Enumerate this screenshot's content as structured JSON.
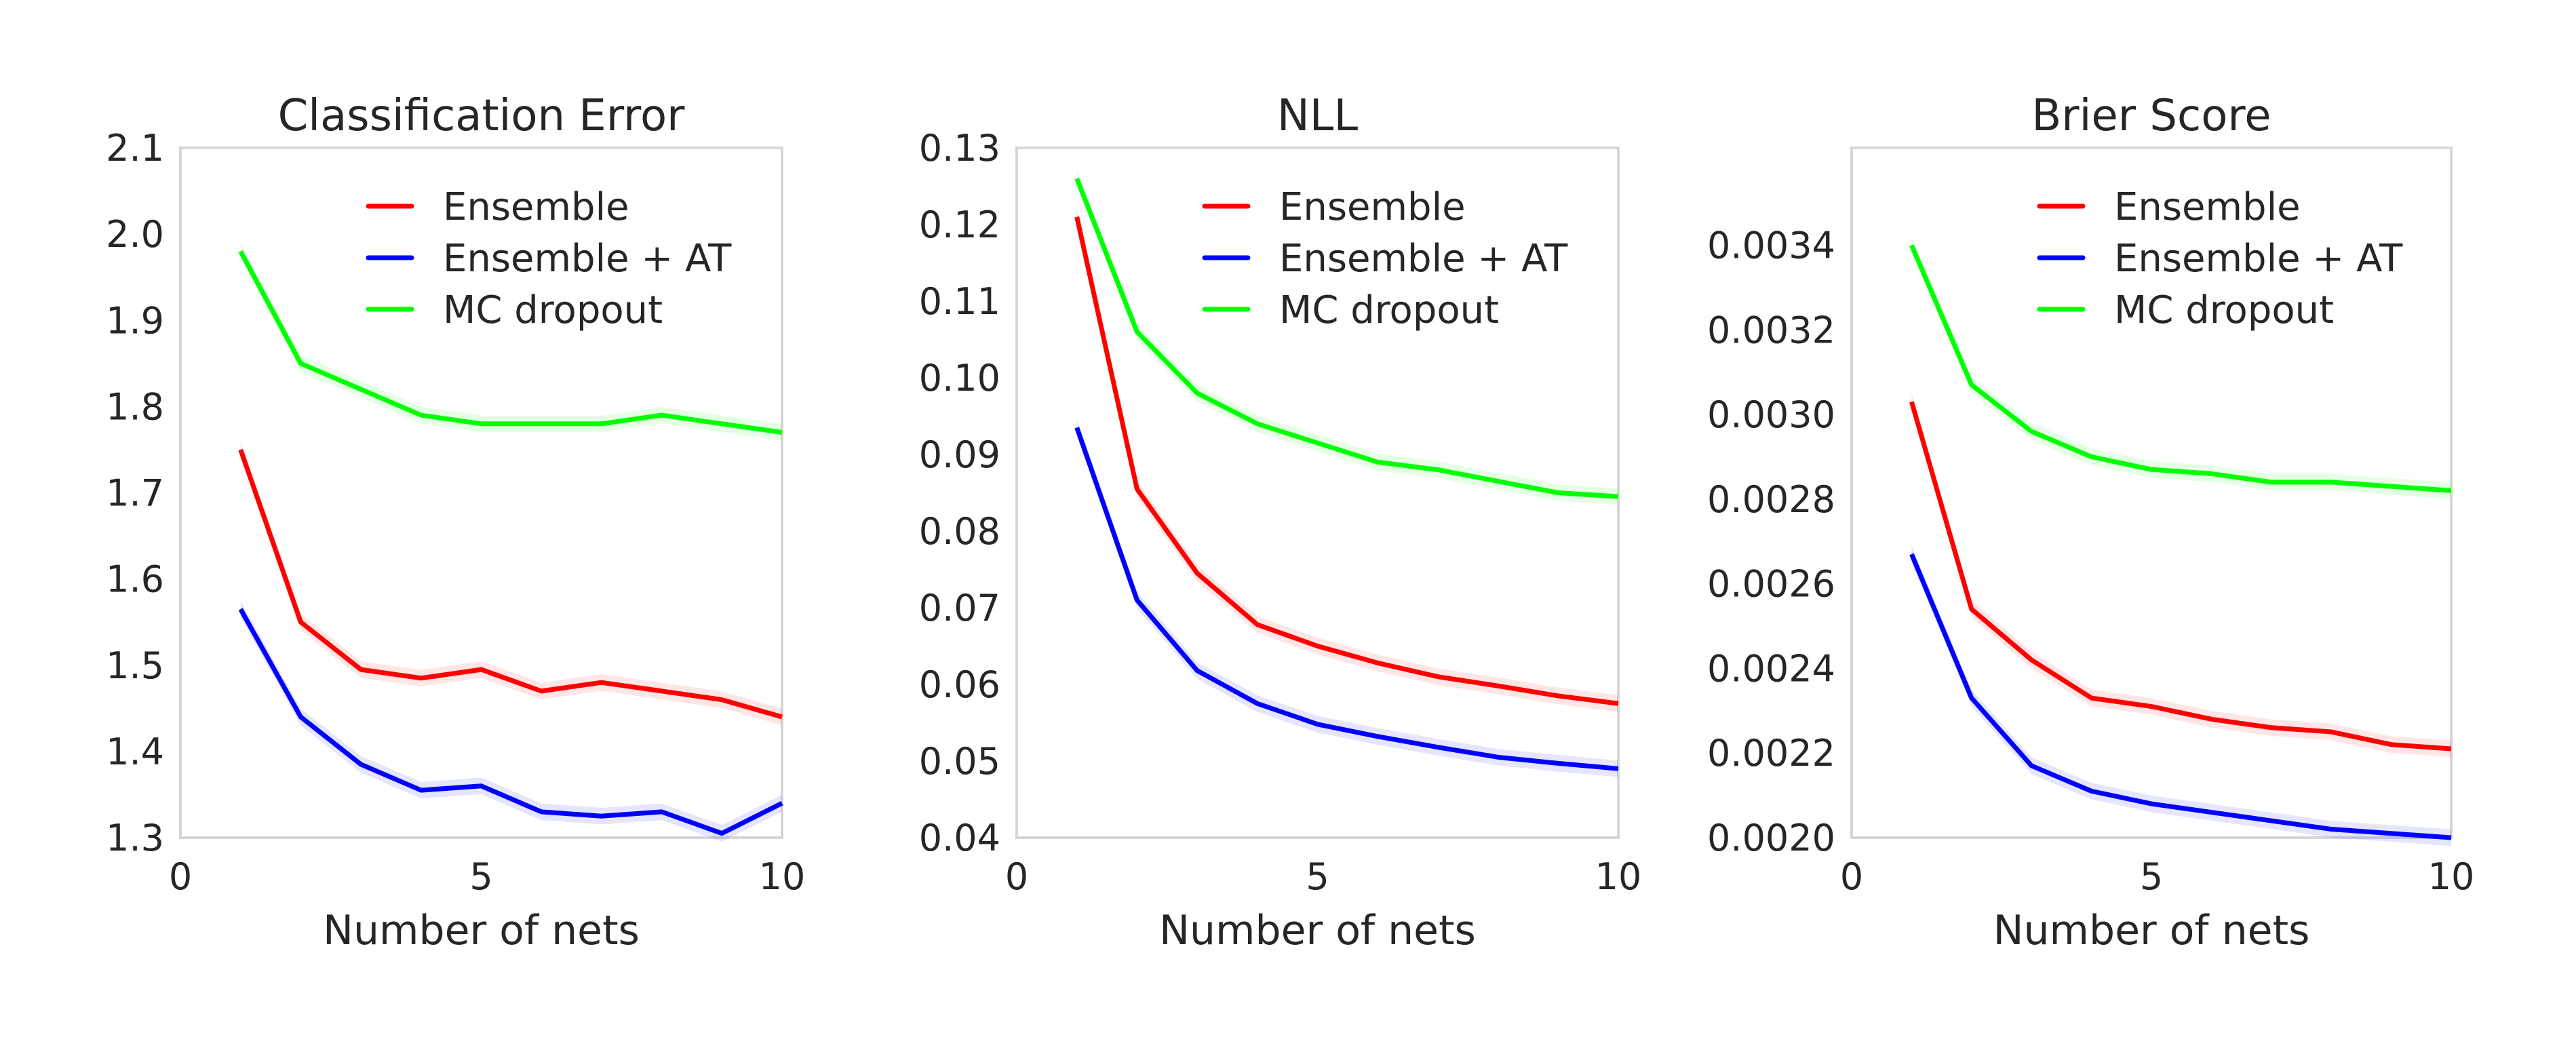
{
  "chart_data": [
    {
      "type": "line",
      "title": "Classification Error",
      "xlabel": "Number of nets",
      "ylabel": "",
      "xlim": [
        0,
        10
      ],
      "ylim": [
        1.3,
        2.1
      ],
      "xticks": [
        "0",
        "5",
        "10"
      ],
      "xtick_values": [
        0,
        5,
        10
      ],
      "yticks": [
        "1.3",
        "1.4",
        "1.5",
        "1.6",
        "1.7",
        "1.8",
        "1.9",
        "2.0",
        "2.1"
      ],
      "ytick_values": [
        1.3,
        1.4,
        1.5,
        1.6,
        1.7,
        1.8,
        1.9,
        2.0,
        2.1
      ],
      "grid": false,
      "legend_position": "top-right",
      "x": [
        1,
        2,
        3,
        4,
        5,
        6,
        7,
        8,
        9,
        10
      ],
      "series": [
        {
          "name": "Ensemble",
          "color": "#ff0000",
          "values": [
            1.75,
            1.55,
            1.495,
            1.485,
            1.495,
            1.47,
            1.48,
            1.47,
            1.46,
            1.44
          ]
        },
        {
          "name": "Ensemble + AT",
          "color": "#0000ff",
          "values": [
            1.565,
            1.44,
            1.385,
            1.355,
            1.36,
            1.33,
            1.325,
            1.33,
            1.305,
            1.34
          ]
        },
        {
          "name": "MC dropout",
          "color": "#00ff00",
          "values": [
            1.98,
            1.85,
            1.82,
            1.79,
            1.78,
            1.78,
            1.78,
            1.79,
            1.78,
            1.77
          ]
        }
      ]
    },
    {
      "type": "line",
      "title": "NLL",
      "xlabel": "Number of nets",
      "ylabel": "",
      "xlim": [
        0,
        10
      ],
      "ylim": [
        0.04,
        0.13
      ],
      "xticks": [
        "0",
        "5",
        "10"
      ],
      "xtick_values": [
        0,
        5,
        10
      ],
      "yticks": [
        "0.04",
        "0.05",
        "0.06",
        "0.07",
        "0.08",
        "0.09",
        "0.10",
        "0.11",
        "0.12",
        "0.13"
      ],
      "ytick_values": [
        0.04,
        0.05,
        0.06,
        0.07,
        0.08,
        0.09,
        0.1,
        0.11,
        0.12,
        0.13
      ],
      "grid": false,
      "legend_position": "top-right",
      "x": [
        1,
        2,
        3,
        4,
        5,
        6,
        7,
        8,
        9,
        10
      ],
      "series": [
        {
          "name": "Ensemble",
          "color": "#ff0000",
          "values": [
            0.121,
            0.0855,
            0.0745,
            0.0678,
            0.065,
            0.0628,
            0.061,
            0.0598,
            0.0585,
            0.0575
          ]
        },
        {
          "name": "Ensemble + AT",
          "color": "#0000ff",
          "values": [
            0.0935,
            0.071,
            0.0618,
            0.0575,
            0.0548,
            0.0532,
            0.0518,
            0.0505,
            0.0497,
            0.049
          ]
        },
        {
          "name": "MC dropout",
          "color": "#00ff00",
          "values": [
            0.126,
            0.106,
            0.098,
            0.094,
            0.0915,
            0.089,
            0.088,
            0.0865,
            0.085,
            0.0845
          ]
        }
      ]
    },
    {
      "type": "line",
      "title": "Brier Score",
      "xlabel": "Number of nets",
      "ylabel": "",
      "xlim": [
        0,
        10
      ],
      "ylim": [
        0.002,
        0.00363
      ],
      "xticks": [
        "0",
        "5",
        "10"
      ],
      "xtick_values": [
        0,
        5,
        10
      ],
      "yticks": [
        "0.0020",
        "0.0022",
        "0.0024",
        "0.0026",
        "0.0028",
        "0.0030",
        "0.0032",
        "0.0034"
      ],
      "ytick_values": [
        0.002,
        0.0022,
        0.0024,
        0.0026,
        0.0028,
        0.003,
        0.0032,
        0.0034
      ],
      "grid": false,
      "legend_position": "top-right",
      "x": [
        1,
        2,
        3,
        4,
        5,
        6,
        7,
        8,
        9,
        10
      ],
      "series": [
        {
          "name": "Ensemble",
          "color": "#ff0000",
          "values": [
            0.00303,
            0.00254,
            0.00242,
            0.00233,
            0.00231,
            0.00228,
            0.00226,
            0.00225,
            0.00222,
            0.00221
          ]
        },
        {
          "name": "Ensemble + AT",
          "color": "#0000ff",
          "values": [
            0.00267,
            0.00233,
            0.00217,
            0.00211,
            0.00208,
            0.00206,
            0.00204,
            0.00202,
            0.00201,
            0.002
          ]
        },
        {
          "name": "MC dropout",
          "color": "#00ff00",
          "values": [
            0.0034,
            0.00307,
            0.00296,
            0.0029,
            0.00287,
            0.00286,
            0.00284,
            0.00284,
            0.00283,
            0.00282
          ]
        }
      ]
    }
  ]
}
